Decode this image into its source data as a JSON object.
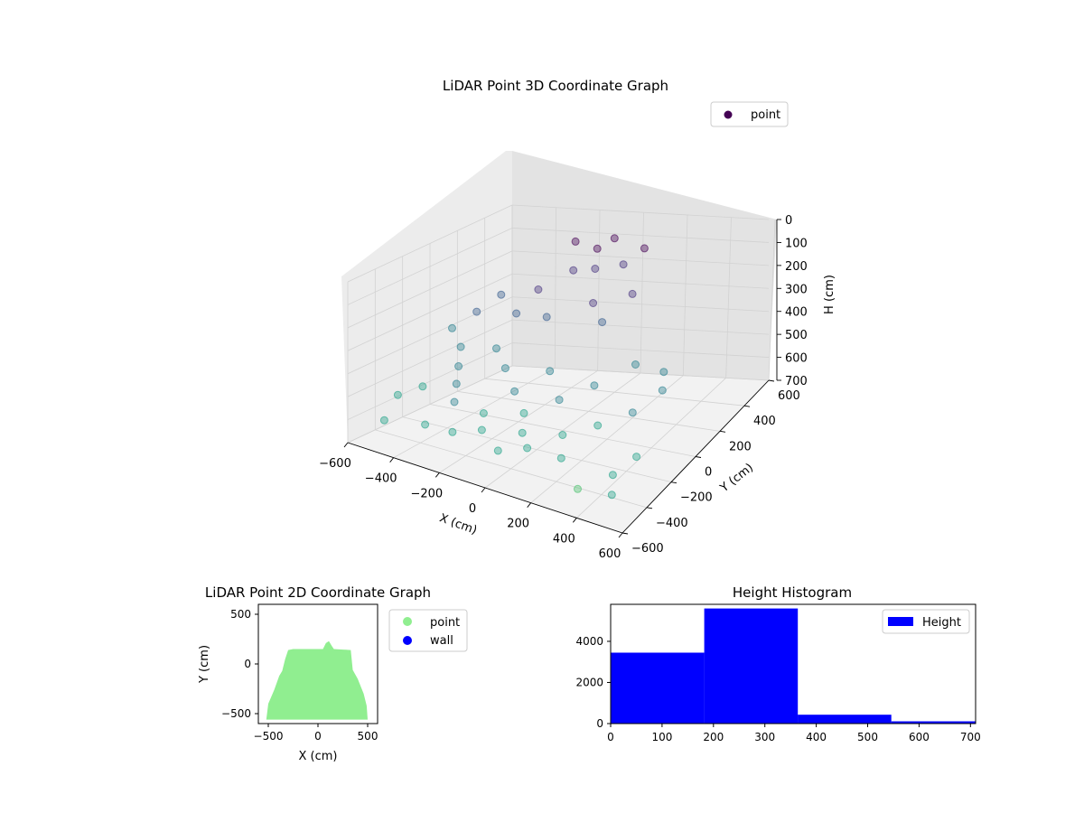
{
  "chart_data": [
    {
      "type": "scatter",
      "projection": "3d",
      "title": "LiDAR Point 3D Coordinate Graph",
      "xlabel": "X (cm)",
      "ylabel": "Y (cm)",
      "zlabel": "H (cm)",
      "xlim": [
        -600,
        600
      ],
      "ylim": [
        -600,
        600
      ],
      "zlim": [
        700,
        0
      ],
      "xticks": [
        "−600",
        "−400",
        "−200",
        "0",
        "200",
        "400",
        "600"
      ],
      "yticks": [
        "−600",
        "−400",
        "−200",
        "0",
        "200",
        "400",
        "600"
      ],
      "zticks": [
        "0",
        "100",
        "200",
        "300",
        "400",
        "500",
        "600",
        "700"
      ],
      "zaxis_inverted": true,
      "colormap": "viridis",
      "marker_alpha": 0.4,
      "grid": true,
      "legend": {
        "placement": "upper-right",
        "entries": [
          "point"
        ]
      },
      "series": [
        {
          "name": "point",
          "color": "#440154",
          "points": [
            {
              "x": -150,
              "y": 350,
              "h": 40
            },
            {
              "x": 0,
              "y": 400,
              "h": 30
            },
            {
              "x": 150,
              "y": 380,
              "h": 50
            },
            {
              "x": -100,
              "y": 250,
              "h": 120
            },
            {
              "x": 100,
              "y": 300,
              "h": 90
            },
            {
              "x": 50,
              "y": 150,
              "h": 200
            },
            {
              "x": -200,
              "y": 150,
              "h": 180
            },
            {
              "x": 200,
              "y": 200,
              "h": 160
            },
            {
              "x": 0,
              "y": 250,
              "h": 100
            },
            {
              "x": -50,
              "y": 350,
              "h": 60
            },
            {
              "x": 120,
              "y": 100,
              "h": 250
            },
            {
              "x": -120,
              "y": 80,
              "h": 260
            },
            {
              "x": -450,
              "y": 100,
              "h": 300
            },
            {
              "x": -500,
              "y": 0,
              "h": 350
            },
            {
              "x": -400,
              "y": -100,
              "h": 380
            },
            {
              "x": -350,
              "y": -200,
              "h": 420
            },
            {
              "x": -300,
              "y": -300,
              "h": 450
            },
            {
              "x": -250,
              "y": -400,
              "h": 480
            },
            {
              "x": -450,
              "y": -300,
              "h": 500
            },
            {
              "x": -500,
              "y": -400,
              "h": 520
            },
            {
              "x": -200,
              "y": -500,
              "h": 560
            },
            {
              "x": -100,
              "y": -450,
              "h": 540
            },
            {
              "x": 0,
              "y": -500,
              "h": 580
            },
            {
              "x": 100,
              "y": -450,
              "h": 560
            },
            {
              "x": 200,
              "y": -350,
              "h": 520
            },
            {
              "x": 300,
              "y": -250,
              "h": 500
            },
            {
              "x": 400,
              "y": -150,
              "h": 470
            },
            {
              "x": 450,
              "y": 0,
              "h": 440
            },
            {
              "x": 400,
              "y": 100,
              "h": 420
            },
            {
              "x": 300,
              "y": 50,
              "h": 380
            },
            {
              "x": -300,
              "y": 0,
              "h": 400
            },
            {
              "x": -200,
              "y": -100,
              "h": 430
            },
            {
              "x": -100,
              "y": -200,
              "h": 470
            },
            {
              "x": 0,
              "y": -300,
              "h": 500
            },
            {
              "x": 100,
              "y": -200,
              "h": 460
            },
            {
              "x": 200,
              "y": -100,
              "h": 420
            },
            {
              "x": 0,
              "y": -100,
              "h": 400
            },
            {
              "x": -400,
              "y": 200,
              "h": 250
            },
            {
              "x": -300,
              "y": 150,
              "h": 300
            },
            {
              "x": -500,
              "y": -500,
              "h": 600
            },
            {
              "x": -350,
              "y": -450,
              "h": 590
            },
            {
              "x": 500,
              "y": -500,
              "h": 620
            },
            {
              "x": 450,
              "y": -400,
              "h": 600
            },
            {
              "x": 350,
              "y": -500,
              "h": 640
            },
            {
              "x": 500,
              "y": -300,
              "h": 560
            },
            {
              "x": -150,
              "y": -350,
              "h": 520
            },
            {
              "x": 250,
              "y": -450,
              "h": 560
            },
            {
              "x": 50,
              "y": -400,
              "h": 530
            }
          ]
        }
      ]
    },
    {
      "type": "scatter",
      "title": "LiDAR Point 2D Coordinate Graph",
      "xlabel": "X (cm)",
      "ylabel": "Y (cm)",
      "xlim": [
        -600,
        600
      ],
      "ylim": [
        -600,
        600
      ],
      "xticks": [
        "−500",
        "0",
        "500"
      ],
      "yticks": [
        "−500",
        "0",
        "500"
      ],
      "grid": false,
      "legend": {
        "placement": "outside-right",
        "entries": [
          "point",
          "wall"
        ]
      },
      "series": [
        {
          "name": "point",
          "color": "#90ee90",
          "outline": [
            [
              -520,
              -560
            ],
            [
              -500,
              -400
            ],
            [
              -440,
              -260
            ],
            [
              -390,
              -120
            ],
            [
              -360,
              -70
            ],
            [
              -330,
              50
            ],
            [
              -300,
              140
            ],
            [
              -250,
              150
            ],
            [
              50,
              150
            ],
            [
              80,
              210
            ],
            [
              110,
              230
            ],
            [
              140,
              180
            ],
            [
              160,
              150
            ],
            [
              330,
              140
            ],
            [
              350,
              -60
            ],
            [
              400,
              -150
            ],
            [
              460,
              -300
            ],
            [
              490,
              -420
            ],
            [
              500,
              -560
            ]
          ]
        },
        {
          "name": "wall",
          "color": "#0000ff",
          "points": []
        }
      ]
    },
    {
      "type": "bar",
      "subtype": "histogram",
      "title": "Height Histogram",
      "xlim": [
        0,
        710
      ],
      "ylim": [
        0,
        5800
      ],
      "xticks": [
        "0",
        "100",
        "200",
        "300",
        "400",
        "500",
        "600",
        "700"
      ],
      "yticks": [
        "0",
        "2000",
        "4000"
      ],
      "grid": false,
      "legend": {
        "placement": "upper-right",
        "entries": [
          "Height"
        ]
      },
      "series": [
        {
          "name": "Height",
          "color": "#0000ff",
          "bins": [
            {
              "from": 0,
              "to": 182,
              "count": 3450
            },
            {
              "from": 182,
              "to": 364,
              "count": 5600
            },
            {
              "from": 364,
              "to": 546,
              "count": 430
            },
            {
              "from": 546,
              "to": 710,
              "count": 110
            }
          ]
        }
      ]
    }
  ]
}
